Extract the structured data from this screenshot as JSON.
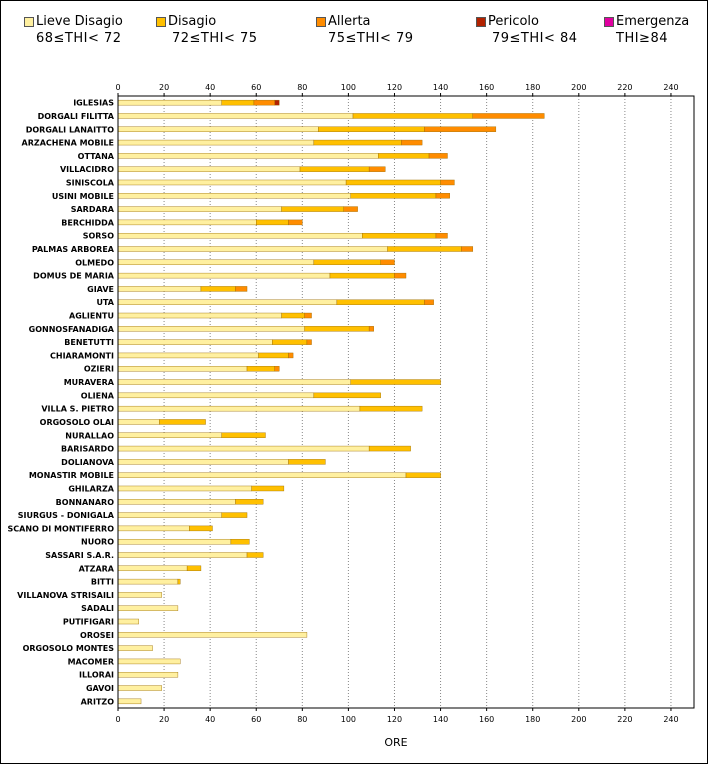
{
  "legend": [
    {
      "label": "Lieve Disagio",
      "range": "68≤THI< 72",
      "color": "#FFF0A0"
    },
    {
      "label": "Disagio",
      "range": "72≤THI< 75",
      "color": "#FFC000"
    },
    {
      "label": "Allerta",
      "range": "75≤THI< 79",
      "color": "#FF8C00"
    },
    {
      "label": "Pericolo",
      "range": "79≤THI< 84",
      "color": "#B22200"
    },
    {
      "label": "Emergenza",
      "range": "THI≥84",
      "color": "#E000A0"
    }
  ],
  "chart_data": {
    "type": "bar",
    "orientation": "horizontal",
    "stacked": true,
    "xlabel": "ORE",
    "xlim": [
      0,
      250
    ],
    "xticks": [
      0,
      20,
      40,
      60,
      80,
      100,
      120,
      140,
      160,
      180,
      200,
      220,
      240
    ],
    "grid": true,
    "categories": [
      "IGLESIAS",
      "DORGALI FILITTA",
      "DORGALI LANAITTO",
      "ARZACHENA MOBILE",
      "OTTANA",
      "VILLACIDRO",
      "SINISCOLA",
      "USINI MOBILE",
      "SARDARA",
      "BERCHIDDA",
      "SORSO",
      "PALMAS ARBOREA",
      "OLMEDO",
      "DOMUS DE MARIA",
      "GIAVE",
      "UTA",
      "AGLIENTU",
      "GONNOSFANADIGA",
      "BENETUTTI",
      "CHIARAMONTI",
      "OZIERI",
      "MURAVERA",
      "OLIENA",
      "VILLA S. PIETRO",
      "ORGOSOLO OLAI",
      "NURALLAO",
      "BARISARDO",
      "DOLIANOVA",
      "MONASTIR MOBILE",
      "GHILARZA",
      "BONNANARO",
      "SIURGUS - DONIGALA",
      "SCANO DI MONTIFERRO",
      "NUORO",
      "SASSARI S.A.R.",
      "ATZARA",
      "BITTI",
      "VILLANOVA STRISAILI",
      "SADALI",
      "PUTIFIGARI",
      "OROSEI",
      "ORGOSOLO MONTES",
      "MACOMER",
      "ILLORAI",
      "GAVOI",
      "ARITZO"
    ],
    "series": [
      {
        "name": "Lieve Disagio",
        "values": [
          45,
          102,
          87,
          85,
          113,
          79,
          99,
          101,
          71,
          60,
          106,
          117,
          85,
          92,
          36,
          95,
          71,
          81,
          67,
          61,
          56,
          101,
          85,
          105,
          18,
          45,
          109,
          74,
          125,
          58,
          51,
          45,
          31,
          49,
          56,
          30,
          26,
          19,
          26,
          9,
          82,
          15,
          27,
          26,
          19,
          10
        ]
      },
      {
        "name": "Disagio",
        "values": [
          14,
          52,
          46,
          38,
          22,
          30,
          41,
          37,
          27,
          14,
          32,
          32,
          29,
          28,
          15,
          38,
          10,
          28,
          15,
          13,
          12,
          39,
          29,
          27,
          20,
          19,
          18,
          16,
          15,
          14,
          12,
          11,
          10,
          8,
          7,
          6,
          1,
          0,
          0,
          0,
          0,
          0,
          0,
          0,
          0,
          0
        ]
      },
      {
        "name": "Allerta",
        "values": [
          9,
          31,
          31,
          9,
          8,
          7,
          6,
          6,
          6,
          6,
          5,
          5,
          6,
          5,
          5,
          4,
          3,
          2,
          2,
          2,
          2,
          0,
          0,
          0,
          0,
          0,
          0,
          0,
          0,
          0,
          0,
          0,
          0,
          0,
          0,
          0,
          0,
          0,
          0,
          0,
          0,
          0,
          0,
          0,
          0,
          0
        ]
      },
      {
        "name": "Pericolo",
        "values": [
          2,
          0,
          0,
          0,
          0,
          0,
          0,
          0,
          0,
          0,
          0,
          0,
          0,
          0,
          0,
          0,
          0,
          0,
          0,
          0,
          0,
          0,
          0,
          0,
          0,
          0,
          0,
          0,
          0,
          0,
          0,
          0,
          0,
          0,
          0,
          0,
          0,
          0,
          0,
          0,
          0,
          0,
          0,
          0,
          0,
          0
        ]
      },
      {
        "name": "Emergenza",
        "values": [
          0,
          0,
          0,
          0,
          0,
          0,
          0,
          0,
          0,
          0,
          0,
          0,
          0,
          0,
          0,
          0,
          0,
          0,
          0,
          0,
          0,
          0,
          0,
          0,
          0,
          0,
          0,
          0,
          0,
          0,
          0,
          0,
          0,
          0,
          0,
          0,
          0,
          0,
          0,
          0,
          0,
          0,
          0,
          0,
          0,
          0
        ]
      }
    ]
  }
}
